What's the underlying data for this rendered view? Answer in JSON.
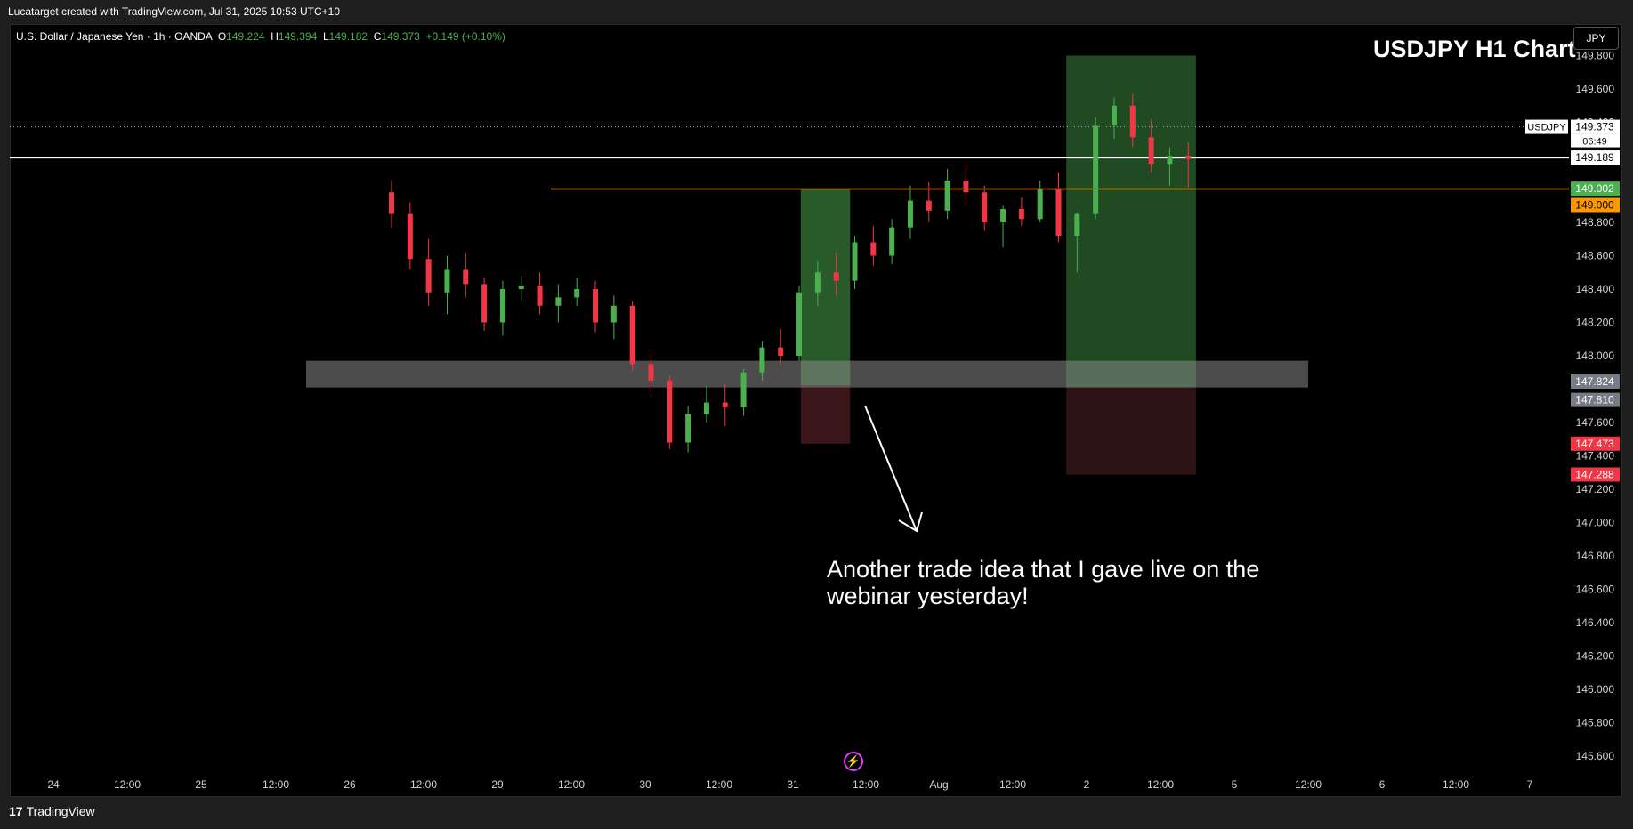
{
  "header": {
    "attribution": "Lucatarget created with TradingView.com, Jul 31, 2025 10:53 UTC+10"
  },
  "legend": {
    "symbol": "U.S. Dollar / Japanese Yen · 1h · OANDA",
    "o_label": "O",
    "o_value": "149.224",
    "h_label": "H",
    "h_value": "149.394",
    "l_label": "L",
    "l_value": "149.182",
    "c_label": "C",
    "c_value": "149.373",
    "change": "+0.149 (+0.10%)"
  },
  "title": "USDJPY H1 Chart",
  "currency_button": "JPY",
  "annotation": "Another trade idea that I gave live on the webinar yesterday!",
  "footer": {
    "brand": "TradingView",
    "brand_mark": "17"
  },
  "icons": {
    "replay": "lightning-bolt-icon",
    "logo": "tradingview-logo-icon",
    "arrow": "arrow-down-right-icon"
  },
  "colors": {
    "background": "#000000",
    "up": "#4caf50",
    "down": "#f23645",
    "orange_level": "#ff9800",
    "white_level": "#ffffff",
    "profit_zone": "#1f4a22",
    "loss_zone": "#2e1416",
    "support_zone": "#8a8a8a"
  },
  "chart_data": {
    "type": "candlestick",
    "title": "USDJPY H1 Chart",
    "symbol": "USDJPY",
    "timeframe": "1h",
    "ylim": [
      145.5,
      149.85
    ],
    "y_ticks": [
      "149.800",
      "149.600",
      "149.400",
      "149.200",
      "148.800",
      "148.600",
      "148.400",
      "148.200",
      "148.000",
      "147.600",
      "147.400",
      "147.200",
      "147.000",
      "146.800",
      "146.600",
      "146.400",
      "146.200",
      "146.000",
      "145.800",
      "145.600"
    ],
    "x_ticks": [
      "24",
      "12:00",
      "25",
      "12:00",
      "26",
      "12:00",
      "29",
      "12:00",
      "30",
      "12:00",
      "31",
      "12:00",
      "Aug",
      "12:00",
      "2",
      "12:00",
      "5",
      "12:00",
      "6",
      "12:00",
      "7"
    ],
    "price_labels": [
      {
        "text": "USDJPY",
        "kind": "symbol"
      },
      {
        "text": "149.373",
        "kind": "last"
      },
      {
        "text": "06:49",
        "kind": "countdown"
      },
      {
        "text": "149.189",
        "kind": "level-white"
      },
      {
        "text": "149.002",
        "kind": "target-green"
      },
      {
        "text": "149.000",
        "kind": "level-orange"
      },
      {
        "text": "147.824",
        "kind": "zone-grey"
      },
      {
        "text": "147.810",
        "kind": "zone-grey"
      },
      {
        "text": "147.473",
        "kind": "stop-red"
      },
      {
        "text": "147.288",
        "kind": "stop-red"
      }
    ],
    "levels": {
      "last": 149.373,
      "white": 149.189,
      "orange": 149.0,
      "support_zone": [
        147.81,
        147.97
      ]
    },
    "positions": [
      {
        "entry": 147.824,
        "target": 149.002,
        "stop": 147.473,
        "time_from": 60.5,
        "time_to": 64.5
      },
      {
        "entry": 147.81,
        "target": 149.8,
        "stop": 147.288,
        "time_from": 82,
        "time_to": 92.5
      }
    ],
    "candles": [
      [
        148.98,
        149.05,
        148.77,
        148.85
      ],
      [
        148.85,
        148.92,
        148.52,
        148.58
      ],
      [
        148.58,
        148.7,
        148.3,
        148.38
      ],
      [
        148.38,
        148.6,
        148.25,
        148.52
      ],
      [
        148.52,
        148.62,
        148.35,
        148.43
      ],
      [
        148.43,
        148.47,
        148.15,
        148.2
      ],
      [
        148.2,
        148.45,
        148.12,
        148.4
      ],
      [
        148.4,
        148.48,
        148.33,
        148.42
      ],
      [
        148.42,
        148.5,
        148.25,
        148.3
      ],
      [
        148.3,
        148.43,
        148.2,
        148.35
      ],
      [
        148.35,
        148.47,
        148.3,
        148.4
      ],
      [
        148.4,
        148.45,
        148.14,
        148.2
      ],
      [
        148.2,
        148.36,
        148.1,
        148.3
      ],
      [
        148.3,
        148.33,
        147.91,
        147.95
      ],
      [
        147.95,
        148.02,
        147.78,
        147.85
      ],
      [
        147.85,
        147.88,
        147.44,
        147.48
      ],
      [
        147.48,
        147.7,
        147.42,
        147.65
      ],
      [
        147.65,
        147.82,
        147.6,
        147.72
      ],
      [
        147.72,
        147.83,
        147.58,
        147.69
      ],
      [
        147.69,
        147.92,
        147.64,
        147.9
      ],
      [
        147.9,
        148.09,
        147.85,
        148.05
      ],
      [
        148.05,
        148.16,
        147.95,
        148.0
      ],
      [
        148.0,
        148.42,
        147.97,
        148.38
      ],
      [
        148.38,
        148.57,
        148.3,
        148.5
      ],
      [
        148.5,
        148.62,
        148.36,
        148.45
      ],
      [
        148.45,
        148.72,
        148.4,
        148.68
      ],
      [
        148.68,
        148.78,
        148.54,
        148.6
      ],
      [
        148.6,
        148.82,
        148.55,
        148.77
      ],
      [
        148.77,
        149.02,
        148.7,
        148.93
      ],
      [
        148.93,
        149.04,
        148.8,
        148.87
      ],
      [
        148.87,
        149.12,
        148.82,
        149.05
      ],
      [
        149.05,
        149.15,
        148.9,
        148.98
      ],
      [
        148.98,
        149.02,
        148.75,
        148.8
      ],
      [
        148.8,
        148.9,
        148.65,
        148.88
      ],
      [
        148.88,
        148.95,
        148.78,
        148.82
      ],
      [
        148.82,
        149.05,
        148.8,
        149.0
      ],
      [
        149.0,
        149.1,
        148.68,
        148.72
      ],
      [
        148.72,
        148.86,
        148.5,
        148.85
      ],
      [
        148.85,
        149.43,
        148.82,
        149.38
      ],
      [
        149.38,
        149.55,
        149.3,
        149.5
      ],
      [
        149.5,
        149.57,
        149.25,
        149.31
      ],
      [
        149.31,
        149.42,
        149.1,
        149.15
      ],
      [
        149.15,
        149.25,
        149.02,
        149.2
      ],
      [
        149.2,
        149.28,
        149.01,
        149.18
      ]
    ],
    "candle_start_time": 0,
    "candle_step": 1.5
  }
}
